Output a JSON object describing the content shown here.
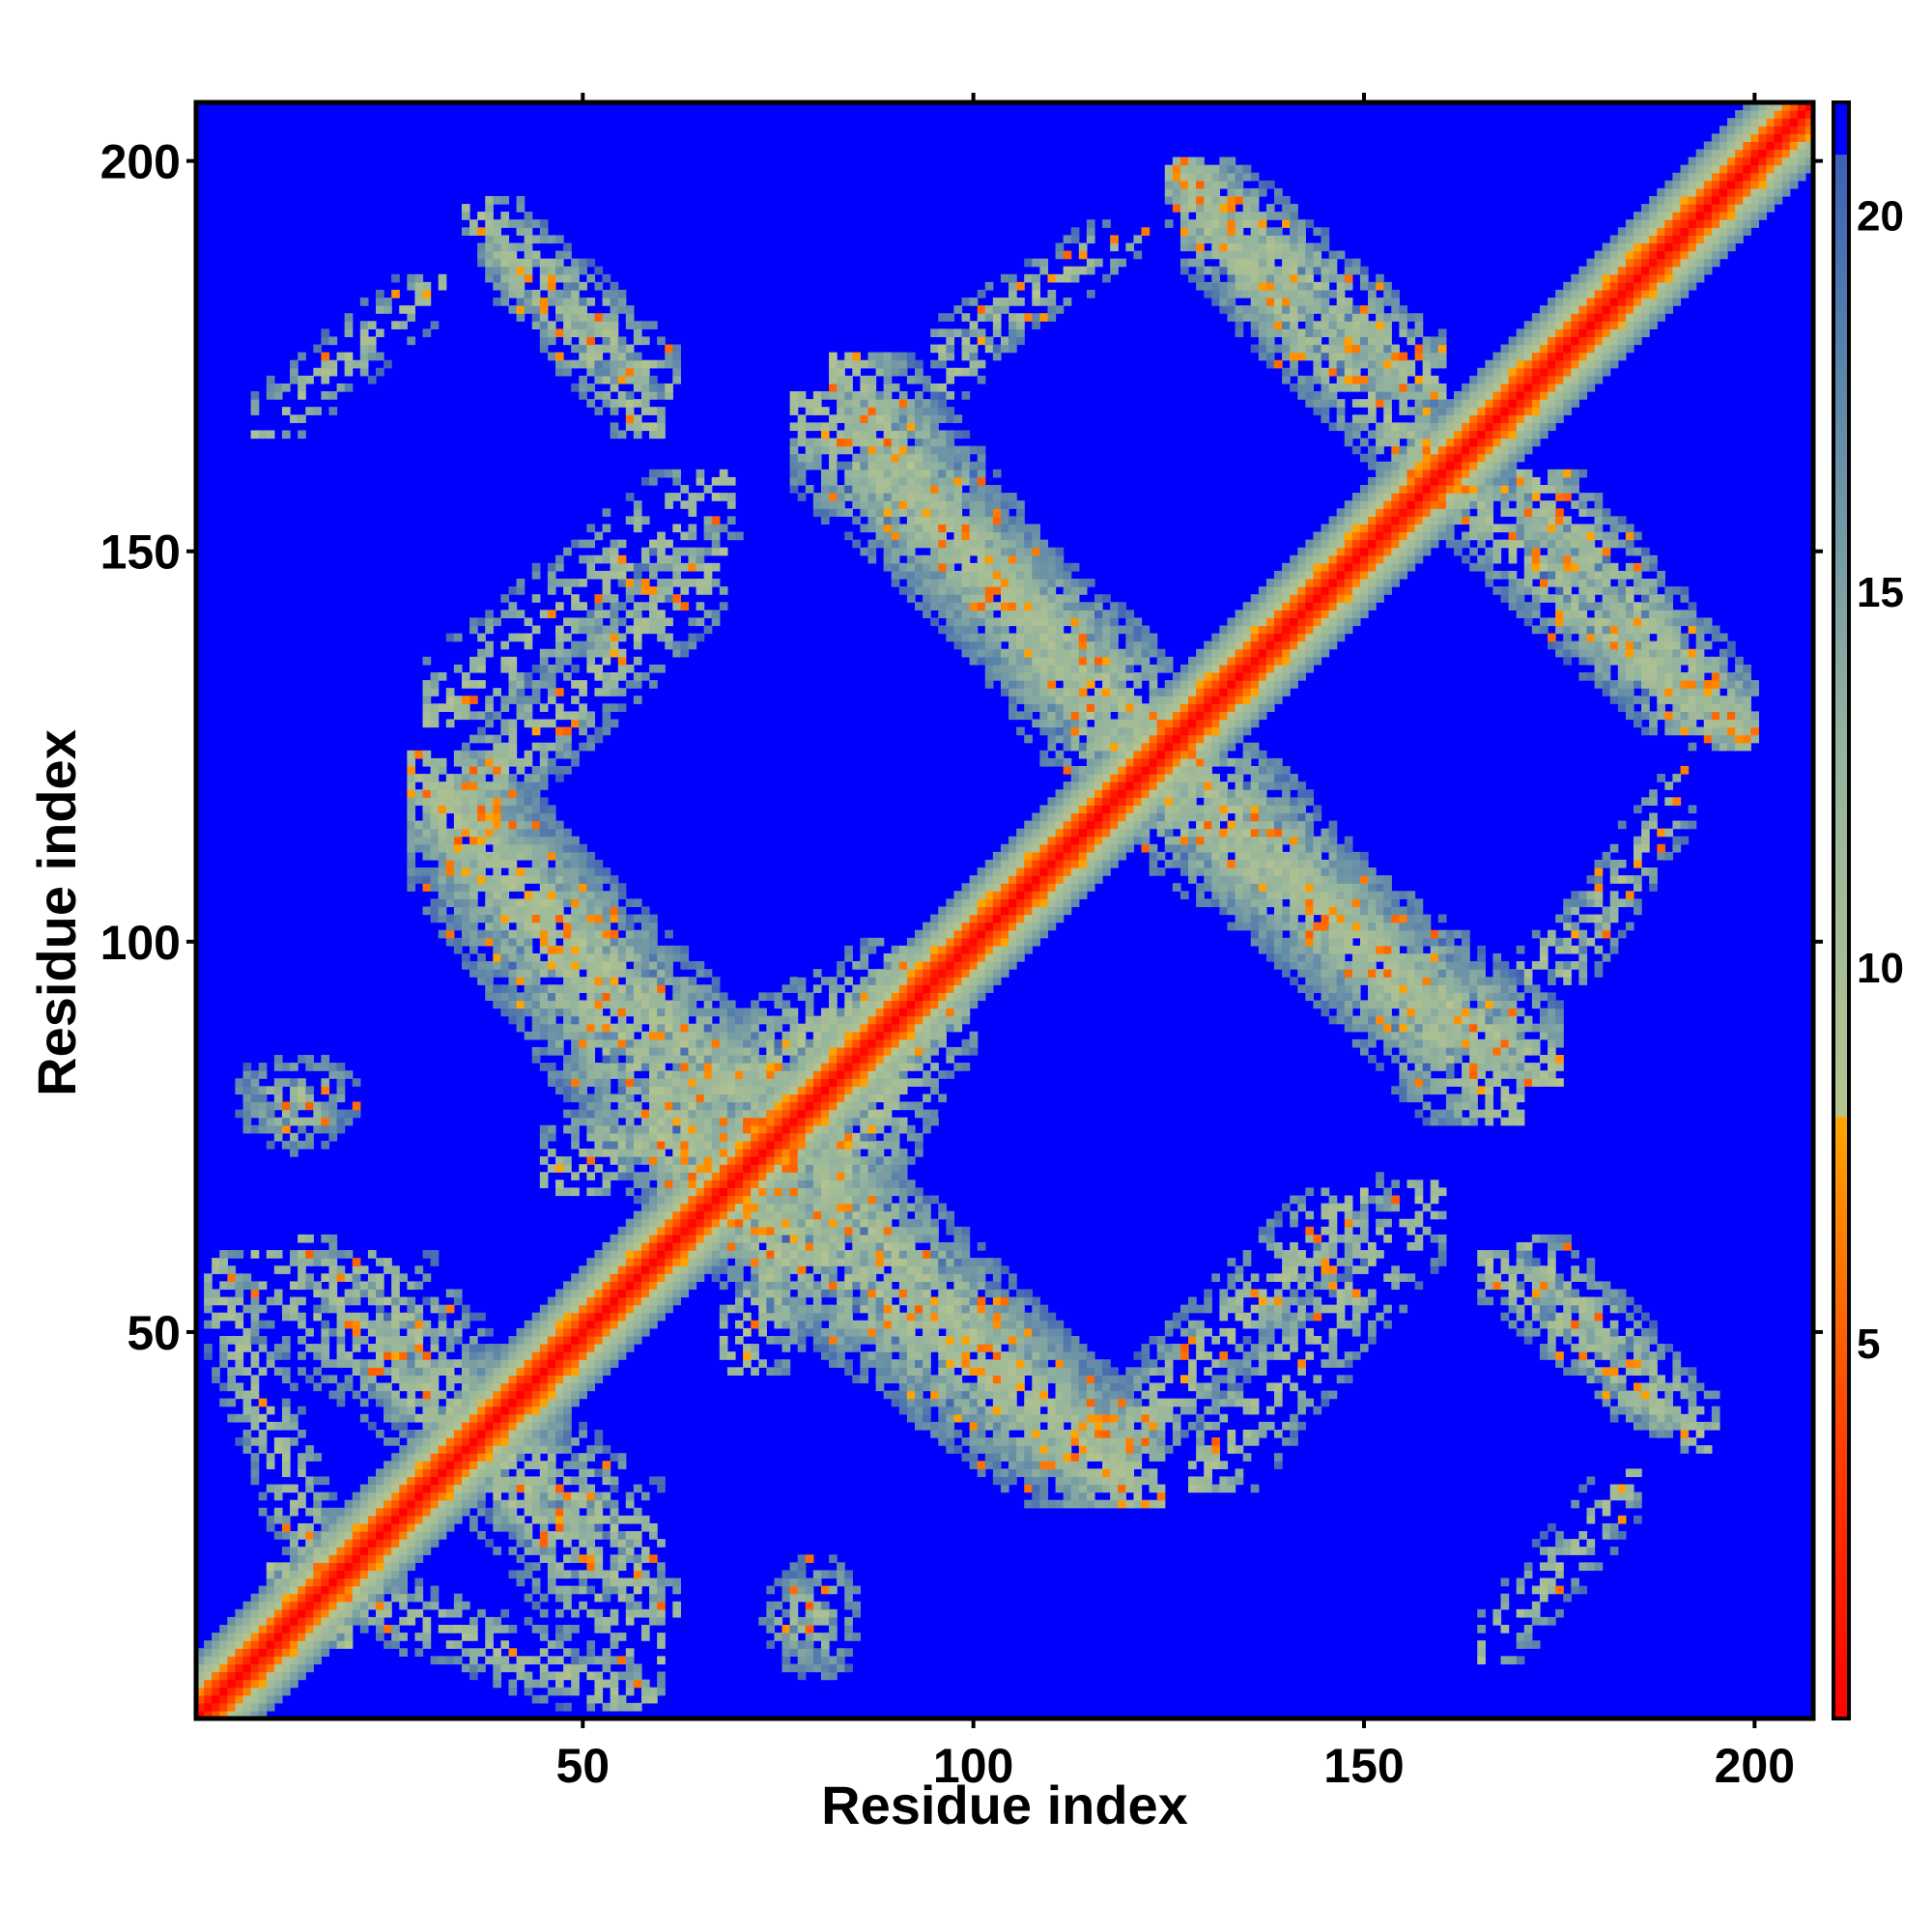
{
  "chart_data": {
    "type": "heatmap",
    "title": "",
    "xlabel": "Residue index",
    "ylabel": "Residue index",
    "xlim": [
      1,
      207
    ],
    "ylim": [
      1,
      207
    ],
    "x_ticks": [
      50,
      100,
      150,
      200
    ],
    "y_ticks": [
      50,
      100,
      150,
      200
    ],
    "colorbar": {
      "ticks": [
        5,
        10,
        15,
        20
      ],
      "range": [
        0,
        21.5
      ],
      "stops": [
        {
          "value": 0,
          "color": "#ff0000"
        },
        {
          "value": 4,
          "color": "#ff4500"
        },
        {
          "value": 8,
          "color": "#ffa500"
        },
        {
          "value": 8.01,
          "color": "#b5c48f"
        },
        {
          "value": 13,
          "color": "#93b39e"
        },
        {
          "value": 18,
          "color": "#5a83aa"
        },
        {
          "value": 20.8,
          "color": "#3d5fb8"
        },
        {
          "value": 20.81,
          "color": "#0000ff"
        },
        {
          "value": 21.5,
          "color": "#0000ff"
        }
      ]
    },
    "background_value": 21,
    "diagonal_band_width_residues": 8,
    "contact_regions": [
      {
        "x": [
          2,
          20
        ],
        "y": [
          10,
          60
        ],
        "orientation": "anti",
        "density": "medium"
      },
      {
        "x": [
          38,
          62
        ],
        "y": [
          14,
          30
        ],
        "orientation": "anti",
        "density": "medium"
      },
      {
        "x": [
          20,
          60
        ],
        "y": [
          8,
          60
        ],
        "orientation": "anti",
        "density": "sparse"
      },
      {
        "x": [
          28,
          75
        ],
        "y": [
          60,
          124
        ],
        "orientation": "anti",
        "density": "high"
      },
      {
        "x": [
          45,
          100
        ],
        "y": [
          68,
          100
        ],
        "orientation": "parallel",
        "density": "medium"
      },
      {
        "x": [
          75,
          120
        ],
        "y": [
          30,
          75
        ],
        "orientation": "anti",
        "density": "high"
      },
      {
        "x": [
          118,
          150
        ],
        "y": [
          35,
          68
        ],
        "orientation": "parallel",
        "density": "medium"
      },
      {
        "x": [
          165,
          190
        ],
        "y": [
          38,
          60
        ],
        "orientation": "anti",
        "density": "medium"
      },
      {
        "x": [
          122,
          175
        ],
        "y": [
          82,
          120
        ],
        "orientation": "anti",
        "density": "high"
      },
      {
        "x": [
          77,
          125
        ],
        "y": [
          125,
          170
        ],
        "orientation": "anti",
        "density": "high"
      },
      {
        "x": [
          125,
          160
        ],
        "y": [
          170,
          200
        ],
        "orientation": "anti",
        "density": "high"
      },
      {
        "x": [
          160,
          195
        ],
        "y": [
          127,
          160
        ],
        "orientation": "anti",
        "density": "high"
      },
      {
        "x": [
          35,
          62
        ],
        "y": [
          170,
          195
        ],
        "orientation": "anti",
        "density": "medium"
      },
      {
        "x": [
          30,
          70
        ],
        "y": [
          128,
          160
        ],
        "orientation": "parallel",
        "density": "sparse"
      },
      {
        "x": [
          5,
          22
        ],
        "y": [
          75,
          86
        ],
        "orientation": "blob",
        "density": "medium"
      },
      {
        "x": [
          73,
          82
        ],
        "y": [
          6,
          20
        ],
        "orientation": "blob",
        "density": "medium"
      },
      {
        "x": [
          165,
          185
        ],
        "y": [
          8,
          32
        ],
        "orientation": "parallel",
        "density": "sparse"
      },
      {
        "x": [
          175,
          192
        ],
        "y": [
          95,
          122
        ],
        "orientation": "parallel",
        "density": "sparse"
      },
      {
        "x": [
          95,
          110
        ],
        "y": [
          170,
          185
        ],
        "orientation": "parallel",
        "density": "sparse"
      }
    ]
  }
}
